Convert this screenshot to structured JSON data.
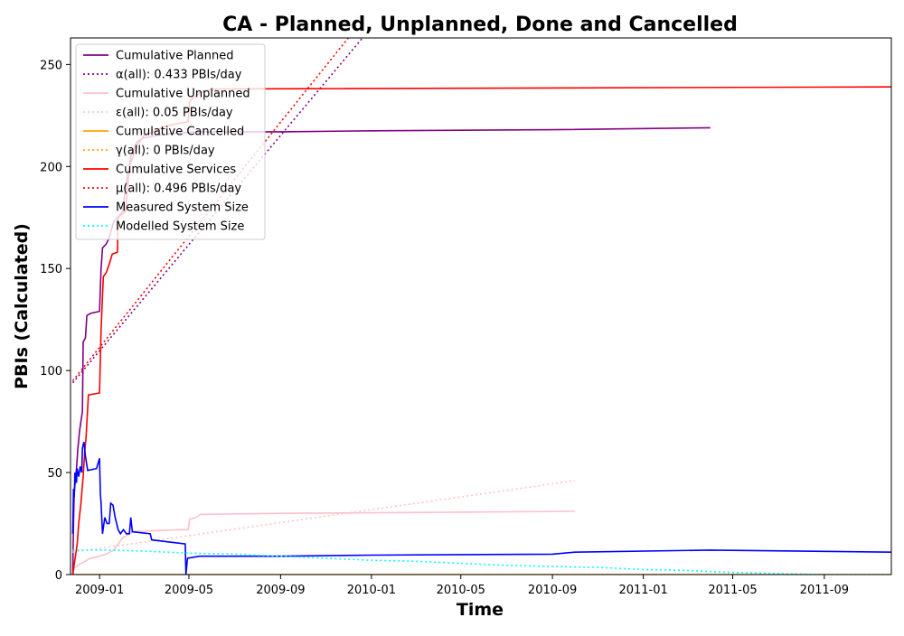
{
  "chart_data": {
    "type": "line",
    "title": "CA - Planned, Unplanned, Done  and Cancelled",
    "xlabel": "Time",
    "ylabel": "PBIs (Calculated)",
    "xlim": [
      "2008-11-23",
      "2011-11-30"
    ],
    "ylim": [
      0,
      263
    ],
    "grid": false,
    "legend_position": "top-left",
    "x_ticks": [
      {
        "date": "2009-01-01",
        "label": "2009-01"
      },
      {
        "date": "2009-05-01",
        "label": "2009-05"
      },
      {
        "date": "2009-09-01",
        "label": "2009-09"
      },
      {
        "date": "2010-01-01",
        "label": "2010-01"
      },
      {
        "date": "2010-05-01",
        "label": "2010-05"
      },
      {
        "date": "2010-09-01",
        "label": "2010-09"
      },
      {
        "date": "2011-01-01",
        "label": "2011-01"
      },
      {
        "date": "2011-05-01",
        "label": "2011-05"
      },
      {
        "date": "2011-09-01",
        "label": "2011-09"
      }
    ],
    "y_ticks": [
      0,
      50,
      100,
      150,
      200,
      250
    ],
    "series": [
      {
        "name": "Cumulative Planned",
        "style": "solid",
        "color": "#800080",
        "points": [
          [
            "2008-11-26",
            0
          ],
          [
            "2008-11-27",
            25
          ],
          [
            "2008-11-28",
            40
          ],
          [
            "2008-12-01",
            52
          ],
          [
            "2008-12-03",
            62
          ],
          [
            "2008-12-05",
            70
          ],
          [
            "2008-12-07",
            75
          ],
          [
            "2008-12-09",
            80
          ],
          [
            "2008-12-10",
            114
          ],
          [
            "2008-12-13",
            116
          ],
          [
            "2008-12-15",
            127
          ],
          [
            "2008-12-20",
            128
          ],
          [
            "2009-01-01",
            129
          ],
          [
            "2009-01-03",
            150
          ],
          [
            "2009-01-05",
            160
          ],
          [
            "2009-01-10",
            162
          ],
          [
            "2009-01-14",
            165
          ],
          [
            "2009-01-20",
            173
          ],
          [
            "2009-02-01",
            178
          ],
          [
            "2009-02-05",
            190
          ],
          [
            "2009-02-12",
            205
          ],
          [
            "2009-02-20",
            212
          ],
          [
            "2009-03-01",
            214
          ],
          [
            "2009-04-01",
            216
          ],
          [
            "2009-05-15",
            217
          ],
          [
            "2009-09-01",
            217
          ],
          [
            "2010-01-01",
            217.5
          ],
          [
            "2010-09-01",
            218
          ],
          [
            "2011-04-01",
            219
          ]
        ]
      },
      {
        "name": "α(all): 0.433 PBIs/day",
        "style": "dotted",
        "color": "#800080",
        "points": [
          [
            "2008-11-26",
            94
          ],
          [
            "2009-12-20",
            263
          ]
        ]
      },
      {
        "name": "Cumulative Unplanned",
        "style": "solid",
        "color": "#ffc0cb",
        "points": [
          [
            "2008-11-26",
            0
          ],
          [
            "2008-11-28",
            3
          ],
          [
            "2008-12-05",
            5
          ],
          [
            "2008-12-10",
            6
          ],
          [
            "2008-12-20",
            8
          ],
          [
            "2009-01-01",
            9
          ],
          [
            "2009-01-10",
            10
          ],
          [
            "2009-01-20",
            12
          ],
          [
            "2009-02-01",
            18
          ],
          [
            "2009-02-15",
            21
          ],
          [
            "2009-03-15",
            21.5
          ],
          [
            "2009-04-20",
            22
          ],
          [
            "2009-04-30",
            22
          ],
          [
            "2009-05-02",
            27
          ],
          [
            "2009-05-10",
            28
          ],
          [
            "2009-05-15",
            29
          ],
          [
            "2009-05-16",
            29.5
          ],
          [
            "2009-09-01",
            30
          ],
          [
            "2010-01-01",
            30.3
          ],
          [
            "2010-10-01",
            31
          ]
        ]
      },
      {
        "name": "ε(all): 0.05 PBIs/day",
        "style": "dotted",
        "color": "#ffc0cb",
        "points": [
          [
            "2008-11-26",
            11
          ],
          [
            "2010-10-01",
            46
          ]
        ]
      },
      {
        "name": "Cumulative Cancelled",
        "style": "solid",
        "color": "#ffa500",
        "points": [
          [
            "2008-11-26",
            0
          ],
          [
            "2011-11-30",
            0
          ]
        ]
      },
      {
        "name": "γ(all): 0 PBIs/day",
        "style": "dotted",
        "color": "#ffa500",
        "points": [
          [
            "2008-11-26",
            0
          ],
          [
            "2011-11-30",
            0
          ]
        ]
      },
      {
        "name": "Cumulative Services",
        "style": "solid",
        "color": "#ff0000",
        "points": [
          [
            "2008-11-26",
            0
          ],
          [
            "2008-11-28",
            5
          ],
          [
            "2008-12-02",
            15
          ],
          [
            "2008-12-04",
            25
          ],
          [
            "2008-12-07",
            35
          ],
          [
            "2008-12-10",
            48
          ],
          [
            "2008-12-12",
            60
          ],
          [
            "2008-12-14",
            68
          ],
          [
            "2008-12-17",
            88
          ],
          [
            "2009-01-01",
            89
          ],
          [
            "2009-01-03",
            120
          ],
          [
            "2009-01-06",
            146
          ],
          [
            "2009-01-10",
            148
          ],
          [
            "2009-01-14",
            152
          ],
          [
            "2009-01-18",
            157
          ],
          [
            "2009-01-25",
            158
          ],
          [
            "2009-01-26",
            175
          ],
          [
            "2009-02-05",
            178
          ],
          [
            "2009-02-10",
            200
          ],
          [
            "2009-02-20",
            210
          ],
          [
            "2009-03-01",
            215
          ],
          [
            "2009-04-01",
            220
          ],
          [
            "2009-04-30",
            222
          ],
          [
            "2009-05-02",
            232
          ],
          [
            "2009-05-15",
            236
          ],
          [
            "2009-06-01",
            238
          ],
          [
            "2011-11-30",
            239
          ]
        ]
      },
      {
        "name": "μ(all): 0.496 PBIs/day",
        "style": "dotted",
        "color": "#ff0000",
        "points": [
          [
            "2008-11-26",
            95
          ],
          [
            "2009-12-01",
            263
          ]
        ]
      },
      {
        "name": "Measured System Size",
        "style": "solid",
        "color": "#0000ff",
        "points": [
          [
            "2008-11-26",
            20
          ],
          [
            "2008-11-27",
            42
          ],
          [
            "2008-11-28",
            38
          ],
          [
            "2008-11-29",
            50
          ],
          [
            "2008-12-01",
            45
          ],
          [
            "2008-12-02",
            52
          ],
          [
            "2008-12-04",
            48
          ],
          [
            "2008-12-06",
            53
          ],
          [
            "2008-12-08",
            50
          ],
          [
            "2008-12-09",
            62
          ],
          [
            "2008-12-11",
            65
          ],
          [
            "2008-12-13",
            58
          ],
          [
            "2008-12-16",
            51
          ],
          [
            "2008-12-28",
            52
          ],
          [
            "2009-01-01",
            57
          ],
          [
            "2009-01-02",
            40
          ],
          [
            "2009-01-03",
            35
          ],
          [
            "2009-01-05",
            20
          ],
          [
            "2009-01-08",
            28
          ],
          [
            "2009-01-11",
            25
          ],
          [
            "2009-01-14",
            25
          ],
          [
            "2009-01-16",
            35
          ],
          [
            "2009-01-19",
            34
          ],
          [
            "2009-01-22",
            28
          ],
          [
            "2009-01-26",
            22
          ],
          [
            "2009-01-29",
            20
          ],
          [
            "2009-02-02",
            22
          ],
          [
            "2009-02-06",
            20
          ],
          [
            "2009-02-10",
            20
          ],
          [
            "2009-02-12",
            28
          ],
          [
            "2009-02-14",
            21
          ],
          [
            "2009-03-10",
            20
          ],
          [
            "2009-03-12",
            17
          ],
          [
            "2009-04-26",
            15
          ],
          [
            "2009-04-27",
            0
          ],
          [
            "2009-04-29",
            8
          ],
          [
            "2009-05-15",
            9
          ],
          [
            "2009-09-01",
            9
          ],
          [
            "2010-01-01",
            9.5
          ],
          [
            "2010-09-01",
            10
          ],
          [
            "2010-10-01",
            11
          ],
          [
            "2011-04-01",
            12
          ],
          [
            "2011-11-30",
            11
          ]
        ]
      },
      {
        "name": "Modelled System Size",
        "style": "dotted",
        "color": "#00ffff",
        "points": [
          [
            "2008-11-26",
            12
          ],
          [
            "2009-01-15",
            12
          ],
          [
            "2009-03-01",
            11.5
          ],
          [
            "2009-05-01",
            10.5
          ],
          [
            "2009-07-01",
            10
          ],
          [
            "2009-09-01",
            9
          ],
          [
            "2009-11-01",
            8
          ],
          [
            "2010-01-01",
            7
          ],
          [
            "2010-03-01",
            6.5
          ],
          [
            "2010-05-01",
            5.5
          ],
          [
            "2010-07-01",
            4.5
          ],
          [
            "2010-09-01",
            4
          ],
          [
            "2010-11-01",
            3.5
          ],
          [
            "2011-01-01",
            2.5
          ],
          [
            "2011-03-01",
            2
          ],
          [
            "2011-05-01",
            1
          ],
          [
            "2011-07-01",
            0.5
          ],
          [
            "2011-09-01",
            0
          ],
          [
            "2011-11-30",
            0
          ]
        ]
      }
    ]
  }
}
